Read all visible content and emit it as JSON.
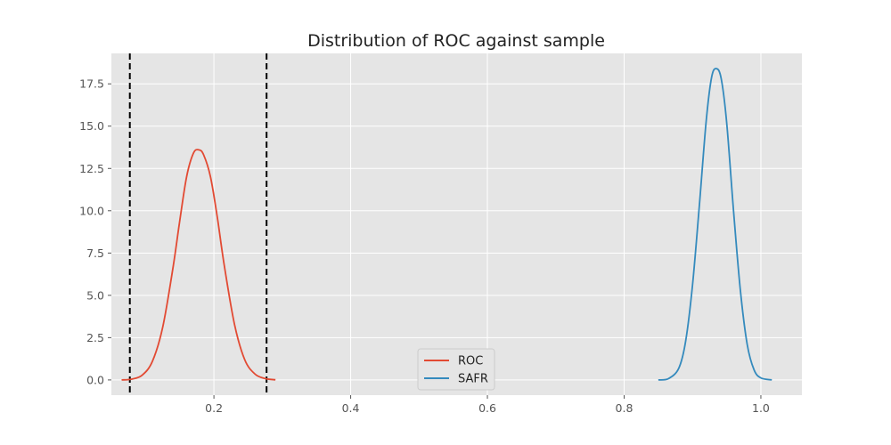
{
  "chart_data": {
    "type": "line",
    "title": "Distribution of ROC against sample",
    "xlabel": "",
    "ylabel": "",
    "xlim": [
      0.05,
      1.06
    ],
    "ylim": [
      -0.9,
      19.3
    ],
    "x_ticks": [
      0.2,
      0.4,
      0.6,
      0.8,
      1.0
    ],
    "x_tick_labels": [
      "0.2",
      "0.4",
      "0.6",
      "0.8",
      "1.0"
    ],
    "y_ticks": [
      0.0,
      2.5,
      5.0,
      7.5,
      10.0,
      12.5,
      15.0,
      17.5
    ],
    "y_tick_labels": [
      "0.0",
      "2.5",
      "5.0",
      "7.5",
      "10.0",
      "12.5",
      "15.0",
      "17.5"
    ],
    "grid": true,
    "legend_position": "lower-center",
    "series": [
      {
        "name": "ROC",
        "color": "#E24A33",
        "x": [
          0.065,
          0.08,
          0.095,
          0.11,
          0.125,
          0.14,
          0.15,
          0.16,
          0.17,
          0.178,
          0.185,
          0.195,
          0.205,
          0.215,
          0.23,
          0.245,
          0.26,
          0.275,
          0.29
        ],
        "y": [
          0.0,
          0.05,
          0.28,
          1.1,
          3.1,
          6.6,
          9.4,
          12.0,
          13.4,
          13.6,
          13.3,
          12.0,
          9.6,
          6.8,
          3.3,
          1.2,
          0.35,
          0.08,
          0.01
        ]
      },
      {
        "name": "SAFR",
        "color": "#348ABD",
        "x": [
          0.85,
          0.865,
          0.88,
          0.89,
          0.9,
          0.91,
          0.92,
          0.928,
          0.935,
          0.942,
          0.95,
          0.96,
          0.97,
          0.98,
          0.99,
          1.0,
          1.016
        ],
        "y": [
          0.0,
          0.08,
          0.7,
          2.3,
          5.6,
          10.3,
          15.3,
          17.9,
          18.4,
          17.8,
          15.2,
          10.0,
          5.3,
          2.1,
          0.6,
          0.12,
          0.0
        ]
      }
    ],
    "vlines": [
      {
        "x": 0.077,
        "color": "#000000",
        "style": "dashed"
      },
      {
        "x": 0.277,
        "color": "#000000",
        "style": "dashed"
      }
    ]
  }
}
